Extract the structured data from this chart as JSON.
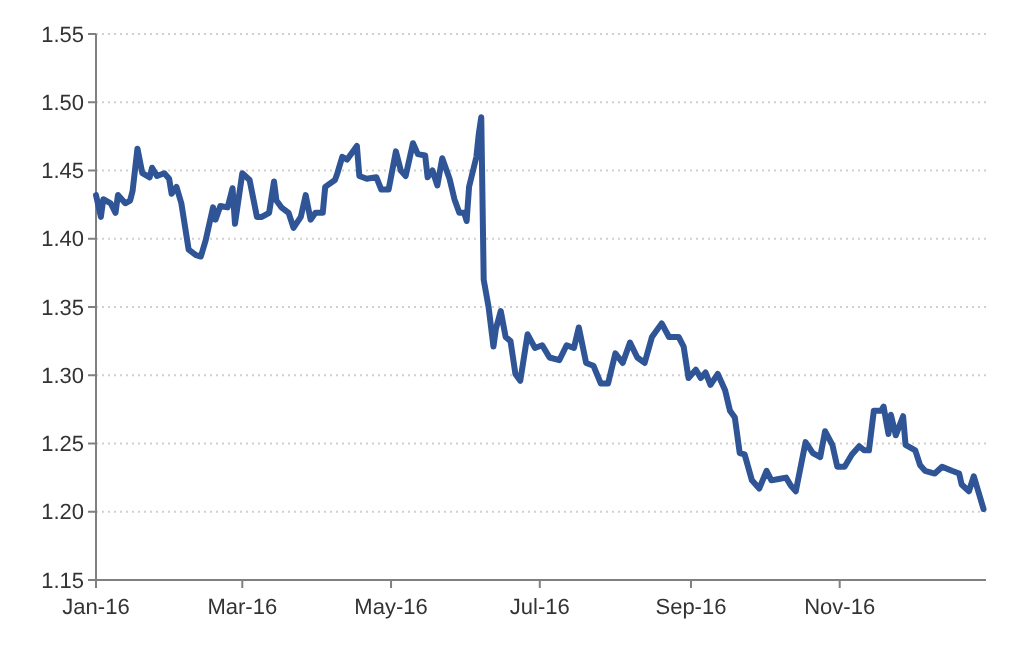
{
  "chart_data": {
    "type": "line",
    "xlim": [
      "2016-01-01",
      "2016-12-31"
    ],
    "xticks": [
      {
        "value": "2016-01-01",
        "label": "Jan-16"
      },
      {
        "value": "2016-03-01",
        "label": "Mar-16"
      },
      {
        "value": "2016-05-01",
        "label": "May-16"
      },
      {
        "value": "2016-07-01",
        "label": "Jul-16"
      },
      {
        "value": "2016-09-01",
        "label": "Sep-16"
      },
      {
        "value": "2016-11-01",
        "label": "Nov-16"
      }
    ],
    "ylim": [
      1.15,
      1.55
    ],
    "yticks": [
      {
        "value": 1.15,
        "label": "1.15"
      },
      {
        "value": 1.2,
        "label": "1.20"
      },
      {
        "value": 1.25,
        "label": "1.25"
      },
      {
        "value": 1.3,
        "label": "1.30"
      },
      {
        "value": 1.35,
        "label": "1.35"
      },
      {
        "value": 1.4,
        "label": "1.40"
      },
      {
        "value": 1.45,
        "label": "1.45"
      },
      {
        "value": 1.5,
        "label": "1.50"
      },
      {
        "value": 1.55,
        "label": "1.55"
      }
    ],
    "grid": "y",
    "marker": "none",
    "line_style": "solid",
    "x": [
      "2016-01-01",
      "2016-01-03",
      "2016-01-04",
      "2016-01-07",
      "2016-01-09",
      "2016-01-10",
      "2016-01-13",
      "2016-01-15",
      "2016-01-16",
      "2016-01-18",
      "2016-01-20",
      "2016-01-23",
      "2016-01-24",
      "2016-01-26",
      "2016-01-29",
      "2016-01-31",
      "2016-02-01",
      "2016-02-03",
      "2016-02-05",
      "2016-02-08",
      "2016-02-11",
      "2016-02-13",
      "2016-02-15",
      "2016-02-18",
      "2016-02-19",
      "2016-02-21",
      "2016-02-24",
      "2016-02-26",
      "2016-02-27",
      "2016-03-01",
      "2016-03-04",
      "2016-03-07",
      "2016-03-09",
      "2016-03-12",
      "2016-03-14",
      "2016-03-15",
      "2016-03-17",
      "2016-03-20",
      "2016-03-22",
      "2016-03-25",
      "2016-03-27",
      "2016-03-29",
      "2016-03-31",
      "2016-04-03",
      "2016-04-04",
      "2016-04-08",
      "2016-04-09",
      "2016-04-11",
      "2016-04-13",
      "2016-04-17",
      "2016-04-18",
      "2016-04-21",
      "2016-04-25",
      "2016-04-27",
      "2016-04-30",
      "2016-05-03",
      "2016-05-05",
      "2016-05-07",
      "2016-05-10",
      "2016-05-12",
      "2016-05-15",
      "2016-05-16",
      "2016-05-18",
      "2016-05-20",
      "2016-05-22",
      "2016-05-25",
      "2016-05-27",
      "2016-05-29",
      "2016-05-31",
      "2016-06-01",
      "2016-06-02",
      "2016-06-05",
      "2016-06-06",
      "2016-06-07",
      "2016-06-08",
      "2016-06-10",
      "2016-06-12",
      "2016-06-13",
      "2016-06-15",
      "2016-06-17",
      "2016-06-19",
      "2016-06-21",
      "2016-06-23",
      "2016-06-26",
      "2016-06-29",
      "2016-07-02",
      "2016-07-05",
      "2016-07-09",
      "2016-07-12",
      "2016-07-15",
      "2016-07-17",
      "2016-07-20",
      "2016-07-23",
      "2016-07-26",
      "2016-07-29",
      "2016-08-01",
      "2016-08-04",
      "2016-08-07",
      "2016-08-10",
      "2016-08-13",
      "2016-08-16",
      "2016-08-20",
      "2016-08-23",
      "2016-08-27",
      "2016-08-29",
      "2016-08-31",
      "2016-09-03",
      "2016-09-05",
      "2016-09-07",
      "2016-09-09",
      "2016-09-12",
      "2016-09-15",
      "2016-09-17",
      "2016-09-19",
      "2016-09-21",
      "2016-09-23",
      "2016-09-26",
      "2016-09-29",
      "2016-10-02",
      "2016-10-04",
      "2016-10-07",
      "2016-10-10",
      "2016-10-12",
      "2016-10-14",
      "2016-10-18",
      "2016-10-21",
      "2016-10-24",
      "2016-10-26",
      "2016-10-29",
      "2016-10-31",
      "2016-11-03",
      "2016-11-06",
      "2016-11-09",
      "2016-11-11",
      "2016-11-13",
      "2016-11-15",
      "2016-11-18",
      "2016-11-19",
      "2016-11-21",
      "2016-11-22",
      "2016-11-24",
      "2016-11-27",
      "2016-11-28",
      "2016-12-02",
      "2016-12-04",
      "2016-12-06",
      "2016-12-10",
      "2016-12-13",
      "2016-12-17",
      "2016-12-20",
      "2016-12-21",
      "2016-12-24",
      "2016-12-26",
      "2016-12-30"
    ],
    "series": [
      {
        "color": "#2f5597",
        "values": [
          1.432,
          1.416,
          1.429,
          1.426,
          1.419,
          1.432,
          1.426,
          1.428,
          1.435,
          1.466,
          1.448,
          1.445,
          1.452,
          1.446,
          1.448,
          1.444,
          1.433,
          1.438,
          1.426,
          1.392,
          1.388,
          1.387,
          1.399,
          1.423,
          1.414,
          1.424,
          1.423,
          1.437,
          1.411,
          1.448,
          1.443,
          1.416,
          1.416,
          1.419,
          1.442,
          1.428,
          1.423,
          1.419,
          1.408,
          1.416,
          1.432,
          1.414,
          1.419,
          1.419,
          1.438,
          1.443,
          1.448,
          1.46,
          1.458,
          1.468,
          1.446,
          1.444,
          1.445,
          1.436,
          1.436,
          1.464,
          1.45,
          1.446,
          1.47,
          1.462,
          1.461,
          1.445,
          1.45,
          1.439,
          1.459,
          1.444,
          1.429,
          1.419,
          1.419,
          1.413,
          1.438,
          1.46,
          1.477,
          1.489,
          1.37,
          1.35,
          1.321,
          1.334,
          1.347,
          1.328,
          1.325,
          1.301,
          1.296,
          1.33,
          1.32,
          1.322,
          1.313,
          1.311,
          1.322,
          1.32,
          1.335,
          1.309,
          1.307,
          1.294,
          1.294,
          1.316,
          1.309,
          1.324,
          1.313,
          1.309,
          1.328,
          1.338,
          1.328,
          1.328,
          1.321,
          1.298,
          1.304,
          1.298,
          1.302,
          1.293,
          1.301,
          1.289,
          1.274,
          1.269,
          1.243,
          1.242,
          1.223,
          1.217,
          1.23,
          1.223,
          1.224,
          1.225,
          1.219,
          1.215,
          1.251,
          1.243,
          1.24,
          1.259,
          1.249,
          1.233,
          1.233,
          1.242,
          1.248,
          1.245,
          1.245,
          1.274,
          1.274,
          1.277,
          1.257,
          1.271,
          1.256,
          1.27,
          1.249,
          1.245,
          1.234,
          1.23,
          1.228,
          1.233,
          1.23,
          1.228,
          1.22,
          1.215,
          1.226,
          1.202
        ]
      }
    ]
  }
}
